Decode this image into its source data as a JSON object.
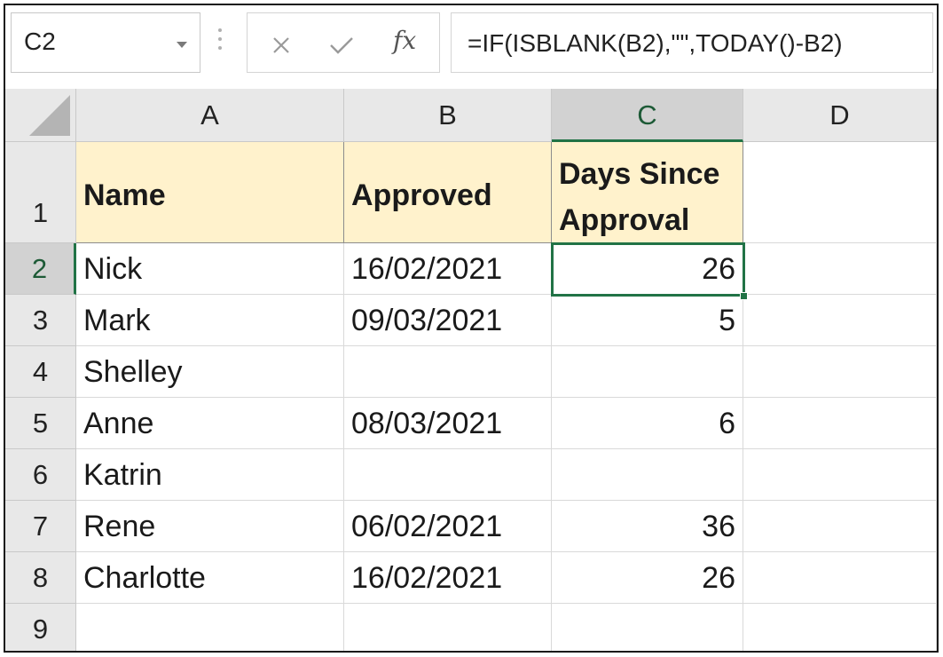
{
  "name_box": {
    "value": "C2"
  },
  "formula_bar": {
    "cancel_icon": "close-icon",
    "enter_icon": "checkmark-icon",
    "fx_label": "fx",
    "formula": "=IF(ISBLANK(B2),\"\",TODAY()-B2)"
  },
  "sheet": {
    "columns": [
      "A",
      "B",
      "C",
      "D"
    ],
    "rows": [
      "1",
      "2",
      "3",
      "4",
      "5",
      "6",
      "7",
      "8",
      "9"
    ],
    "selected_cell": "C2",
    "header_row": {
      "name": "Name",
      "approved": "Approved",
      "days_line1": "Days Since",
      "days_line2": "Approval"
    },
    "data": [
      {
        "name": "Nick",
        "approved": "16/02/2021",
        "days": "26"
      },
      {
        "name": "Mark",
        "approved": "09/03/2021",
        "days": "5"
      },
      {
        "name": "Shelley",
        "approved": "",
        "days": ""
      },
      {
        "name": "Anne",
        "approved": "08/03/2021",
        "days": "6"
      },
      {
        "name": "Katrin",
        "approved": "",
        "days": ""
      },
      {
        "name": "Rene",
        "approved": "06/02/2021",
        "days": "36"
      },
      {
        "name": "Charlotte",
        "approved": "16/02/2021",
        "days": "26"
      }
    ]
  },
  "colors": {
    "accent_green": "#217346",
    "header_fill": "#fff2cc"
  }
}
